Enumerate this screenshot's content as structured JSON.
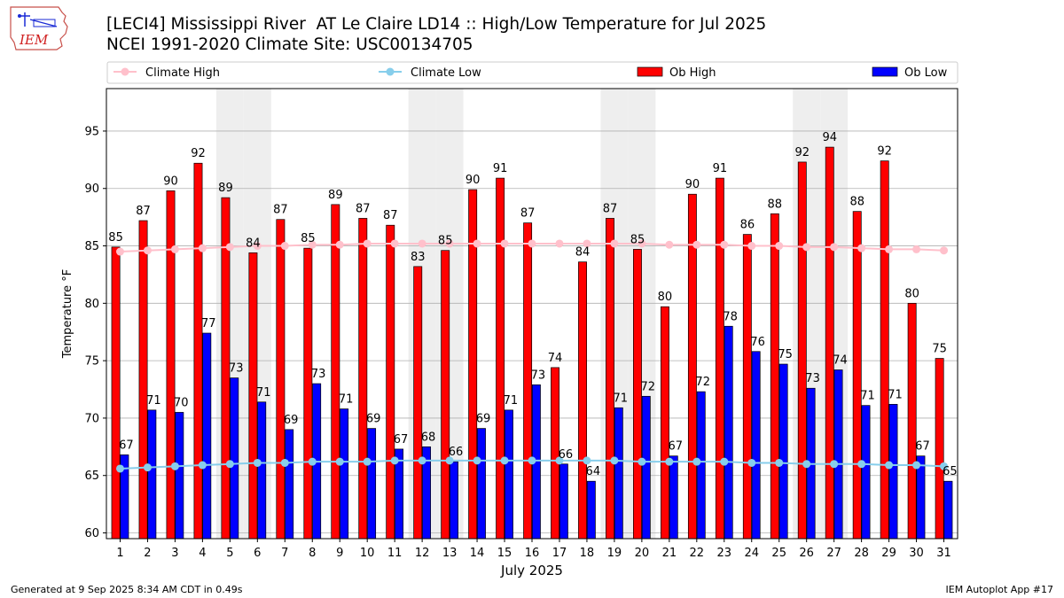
{
  "header": {
    "title": "[LECI4] Mississippi River  AT Le Claire LD14 :: High/Low Temperature for Jul 2025",
    "subtitle": "NCEI 1991-2020 Climate Site: USC00134705",
    "logo_text": "IEM"
  },
  "footer": {
    "generated": "Generated at 9 Sep 2025 8:34 AM CDT in 0.49s",
    "app": "IEM Autoplot App #17"
  },
  "chart_data": {
    "type": "bar",
    "xlabel": "July 2025",
    "ylabel": "Temperature °F",
    "ylim": [
      59.5,
      98.7
    ],
    "yticks": [
      60,
      65,
      70,
      75,
      80,
      85,
      90,
      95
    ],
    "grid": true,
    "legend_placement": "top",
    "categories": [
      "1",
      "2",
      "3",
      "4",
      "5",
      "6",
      "7",
      "8",
      "9",
      "10",
      "11",
      "12",
      "13",
      "14",
      "15",
      "16",
      "17",
      "18",
      "19",
      "20",
      "21",
      "22",
      "23",
      "24",
      "25",
      "26",
      "27",
      "28",
      "29",
      "30",
      "31"
    ],
    "weekend_days": [
      5,
      6,
      12,
      13,
      19,
      20,
      26,
      27
    ],
    "series": [
      {
        "name": "Ob High",
        "kind": "bar",
        "color": "#ff0000",
        "values": [
          85,
          87,
          90,
          92,
          89,
          84,
          87,
          85,
          89,
          87,
          87,
          83,
          85,
          90,
          91,
          87,
          74,
          84,
          87,
          85,
          80,
          90,
          91,
          86,
          88,
          92,
          94,
          88,
          92,
          80,
          75
        ],
        "bar_tops": [
          84.9,
          87.2,
          89.8,
          92.2,
          89.2,
          84.4,
          87.3,
          84.8,
          88.6,
          87.4,
          86.8,
          83.2,
          84.6,
          89.9,
          90.9,
          87.0,
          74.4,
          83.6,
          87.4,
          84.7,
          79.7,
          89.5,
          90.9,
          86.0,
          87.8,
          92.3,
          93.6,
          88.0,
          92.4,
          80.0,
          75.2
        ],
        "labels": [
          "85",
          "87",
          "90",
          "92",
          "89",
          "84",
          "87",
          "85",
          "89",
          "87",
          "87",
          "83",
          "85",
          "90",
          "91",
          "87",
          "74",
          "84",
          "87",
          "85",
          "80",
          "90",
          "91",
          "86",
          "88",
          "92",
          "94",
          "88",
          "92",
          "80",
          "75"
        ]
      },
      {
        "name": "Ob Low",
        "kind": "bar",
        "color": "#0000ff",
        "values": [
          67,
          71,
          70,
          77,
          73,
          71,
          69,
          73,
          71,
          69,
          67,
          68,
          66,
          69,
          71,
          73,
          66,
          64,
          71,
          72,
          67,
          72,
          78,
          76,
          75,
          73,
          74,
          71,
          71,
          67,
          65
        ],
        "bar_tops": [
          66.8,
          70.7,
          70.5,
          77.4,
          73.5,
          71.4,
          69.0,
          73.0,
          70.8,
          69.1,
          67.3,
          67.5,
          66.2,
          69.1,
          70.7,
          72.9,
          66.0,
          64.5,
          70.9,
          71.9,
          66.7,
          72.3,
          78.0,
          75.8,
          74.7,
          72.6,
          74.2,
          71.1,
          71.2,
          66.7,
          64.5
        ],
        "labels": [
          "67",
          "71",
          "70",
          "77",
          "73",
          "71",
          "69",
          "73",
          "71",
          "69",
          "67",
          "68",
          "66",
          "69",
          "71",
          "73",
          "66",
          "64",
          "71",
          "72",
          "67",
          "72",
          "78",
          "76",
          "75",
          "73",
          "74",
          "71",
          "71",
          "67",
          "65"
        ]
      },
      {
        "name": "Climate High",
        "kind": "line",
        "color": "#ffc0cb",
        "values": [
          84.5,
          84.6,
          84.7,
          84.8,
          84.9,
          85.0,
          85.0,
          85.1,
          85.1,
          85.2,
          85.2,
          85.2,
          85.2,
          85.2,
          85.2,
          85.2,
          85.2,
          85.2,
          85.2,
          85.2,
          85.1,
          85.1,
          85.1,
          85.0,
          85.0,
          84.9,
          84.9,
          84.8,
          84.7,
          84.7,
          84.6
        ]
      },
      {
        "name": "Climate Low",
        "kind": "line",
        "color": "#87ceeb",
        "values": [
          65.6,
          65.7,
          65.8,
          65.9,
          66.0,
          66.1,
          66.1,
          66.2,
          66.2,
          66.2,
          66.3,
          66.3,
          66.3,
          66.3,
          66.3,
          66.3,
          66.3,
          66.3,
          66.3,
          66.2,
          66.2,
          66.2,
          66.2,
          66.1,
          66.1,
          66.0,
          66.0,
          66.0,
          65.9,
          65.9,
          65.8
        ]
      }
    ]
  }
}
